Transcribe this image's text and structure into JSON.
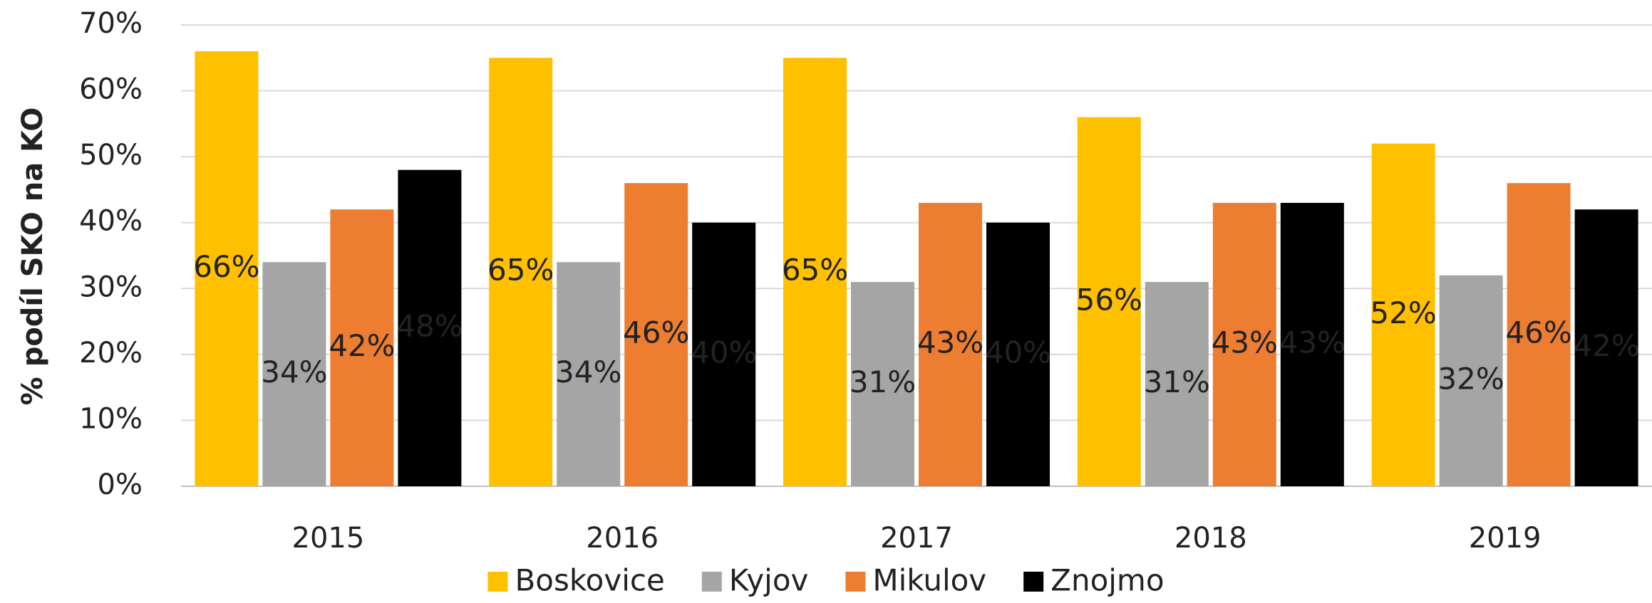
{
  "chart_data": {
    "type": "bar",
    "y_label": "% podíl SKO na KO",
    "categories": [
      "2015",
      "2016",
      "2017",
      "2018",
      "2019"
    ],
    "series": [
      {
        "name": "Boskovice",
        "color": "#FFC000",
        "values": [
          66,
          65,
          65,
          56,
          52
        ],
        "value_labels": [
          "66%",
          "65%",
          "65%",
          "56%",
          "52%"
        ]
      },
      {
        "name": "Kyjov",
        "color": "#A5A5A5",
        "values": [
          34,
          34,
          31,
          31,
          32
        ],
        "value_labels": [
          "34%",
          "34%",
          "31%",
          "31%",
          "32%"
        ]
      },
      {
        "name": "Mikulov",
        "color": "#ED7D31",
        "values": [
          42,
          46,
          43,
          43,
          46
        ],
        "value_labels": [
          "42%",
          "46%",
          "43%",
          "43%",
          "46%"
        ]
      },
      {
        "name": "Znojmo",
        "color": "#000000",
        "values": [
          48,
          40,
          40,
          43,
          42
        ],
        "value_labels": [
          "48%",
          "40%",
          "40%",
          "43%",
          "42%"
        ]
      }
    ],
    "ylim": [
      0,
      70
    ],
    "yticks": [
      {
        "value": 0,
        "label": "0%"
      },
      {
        "value": 10,
        "label": "10%"
      },
      {
        "value": 20,
        "label": "20%"
      },
      {
        "value": 30,
        "label": "30%"
      },
      {
        "value": 40,
        "label": "40%"
      },
      {
        "value": 50,
        "label": "50%"
      },
      {
        "value": 60,
        "label": "60%"
      },
      {
        "value": 70,
        "label": "70%"
      }
    ],
    "grid": true,
    "legend": "bottom"
  }
}
